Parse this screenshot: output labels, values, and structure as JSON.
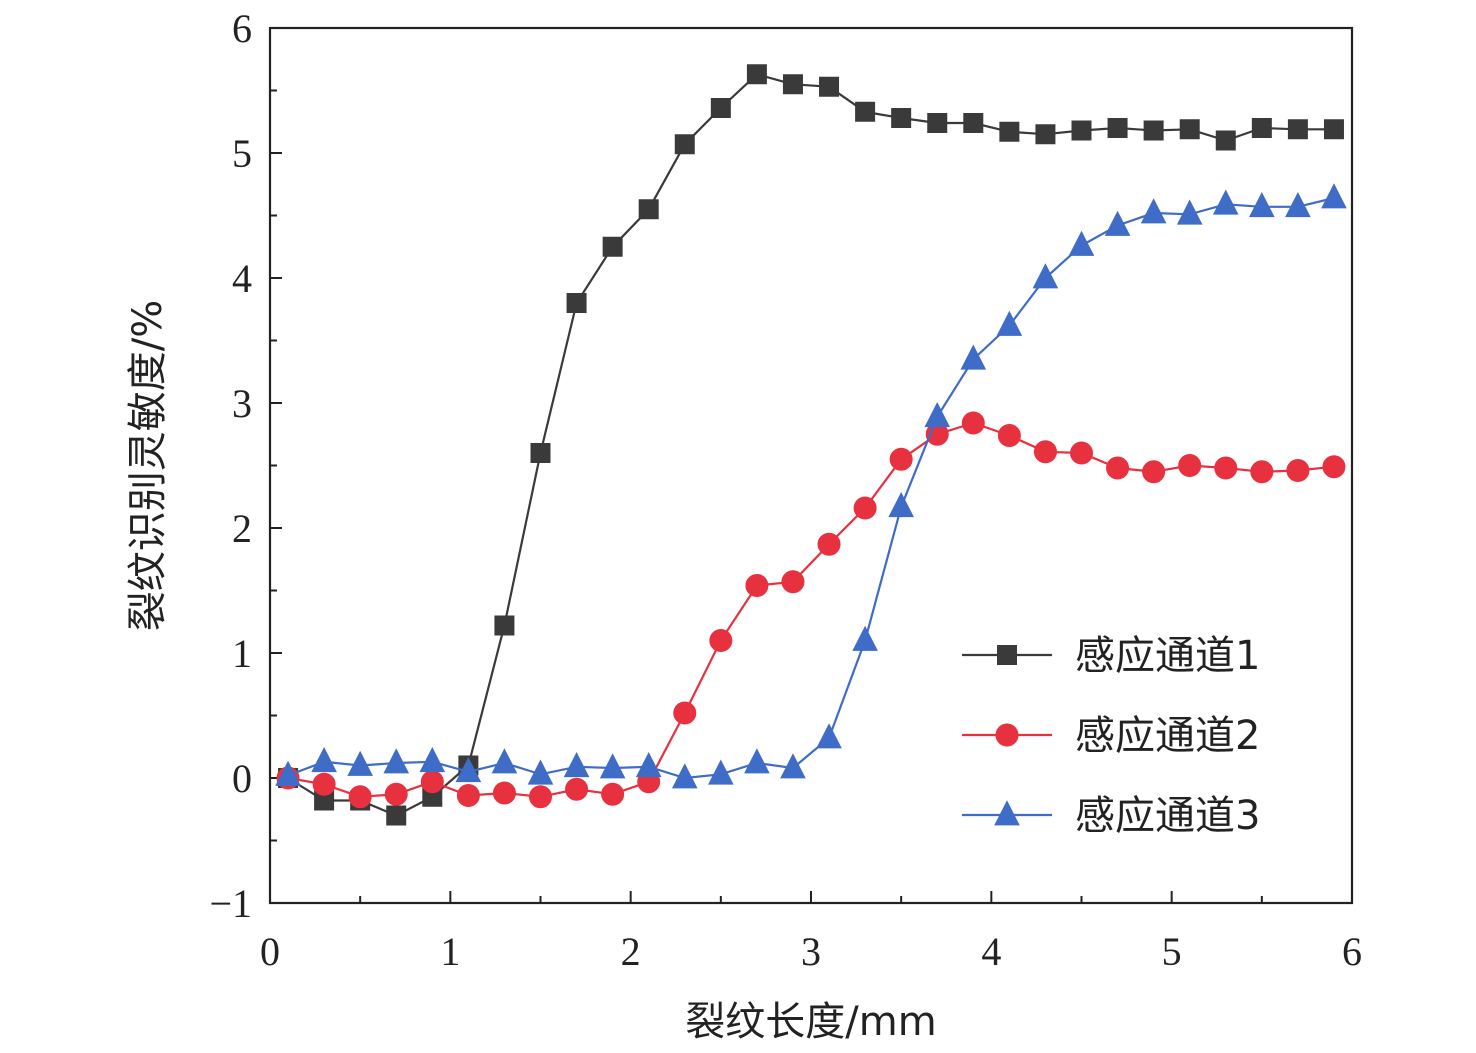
{
  "chart_data": {
    "type": "line",
    "title": "",
    "xlabel": "裂纹长度/mm",
    "ylabel": "裂纹识别灵敏度/%",
    "xlim": [
      0,
      6
    ],
    "ylim": [
      -1,
      6
    ],
    "xticks": [
      0,
      1,
      2,
      3,
      4,
      5,
      6
    ],
    "yticks": [
      -1,
      0,
      1,
      2,
      3,
      4,
      5,
      6
    ],
    "xtick_labels": [
      "0",
      "1",
      "2",
      "3",
      "4",
      "5",
      "6"
    ],
    "ytick_labels": [
      "−1",
      "0",
      "1",
      "2",
      "3",
      "4",
      "5",
      "6"
    ],
    "grid": false,
    "legend_position": "lower-right",
    "x": [
      0.1,
      0.3,
      0.5,
      0.7,
      0.9,
      1.1,
      1.3,
      1.5,
      1.7,
      1.9,
      2.1,
      2.3,
      2.5,
      2.7,
      2.9,
      3.1,
      3.3,
      3.5,
      3.7,
      3.9,
      4.1,
      4.3,
      4.5,
      4.7,
      4.9,
      5.1,
      5.3,
      5.5,
      5.7,
      5.9
    ],
    "series": [
      {
        "name": "感应通道1",
        "color": "#3a3a3a",
        "marker": "square",
        "values": [
          0.0,
          -0.18,
          -0.18,
          -0.3,
          -0.15,
          0.1,
          1.22,
          2.6,
          3.8,
          4.25,
          4.55,
          5.07,
          5.36,
          5.63,
          5.55,
          5.53,
          5.33,
          5.28,
          5.24,
          5.24,
          5.17,
          5.15,
          5.18,
          5.2,
          5.18,
          5.19,
          5.1,
          5.2,
          5.19,
          5.19
        ]
      },
      {
        "name": "感应通道2",
        "color": "#e8313f",
        "marker": "circle",
        "values": [
          0.0,
          -0.05,
          -0.15,
          -0.13,
          -0.03,
          -0.14,
          -0.12,
          -0.15,
          -0.09,
          -0.13,
          -0.03,
          0.52,
          1.1,
          1.54,
          1.57,
          1.87,
          2.16,
          2.55,
          2.75,
          2.84,
          2.74,
          2.61,
          2.6,
          2.48,
          2.45,
          2.5,
          2.48,
          2.45,
          2.46,
          2.49
        ]
      },
      {
        "name": "感应通道3",
        "color": "#3e6cc6",
        "marker": "triangle",
        "values": [
          0.02,
          0.13,
          0.1,
          0.12,
          0.13,
          0.05,
          0.12,
          0.03,
          0.09,
          0.08,
          0.09,
          0.0,
          0.03,
          0.12,
          0.08,
          0.32,
          1.1,
          2.17,
          2.89,
          3.35,
          3.62,
          4.0,
          4.26,
          4.42,
          4.52,
          4.51,
          4.59,
          4.57,
          4.57,
          4.64
        ]
      }
    ]
  }
}
